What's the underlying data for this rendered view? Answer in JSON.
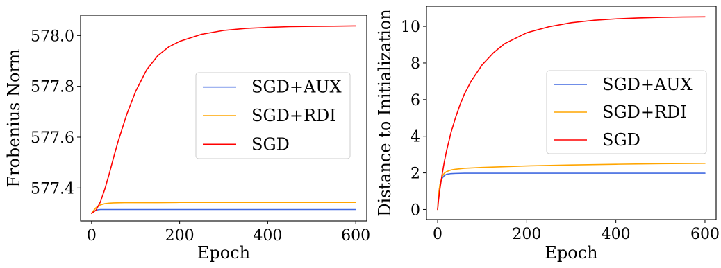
{
  "chart_data": [
    {
      "type": "line",
      "xlabel": "Epoch",
      "ylabel": "Frobenius Norm",
      "xlim": [
        -25,
        625
      ],
      "ylim": [
        577.27,
        578.08
      ],
      "xticks": [
        0,
        200,
        400,
        600
      ],
      "xtick_labels": [
        "0",
        "200",
        "400",
        "600"
      ],
      "yticks": [
        577.4,
        577.6,
        577.8,
        578.0
      ],
      "ytick_labels": [
        "577.4",
        "577.6",
        "577.8",
        "578.0"
      ],
      "legend_position": "center-right",
      "grid": false,
      "series": [
        {
          "name": "SGD+AUX",
          "color": "#4169e1",
          "x": [
            0,
            5,
            10,
            15,
            20,
            30,
            50,
            100,
            200,
            300,
            400,
            500,
            600
          ],
          "y": [
            577.3,
            577.307,
            577.312,
            577.314,
            577.315,
            577.315,
            577.315,
            577.315,
            577.315,
            577.315,
            577.315,
            577.315,
            577.315
          ]
        },
        {
          "name": "SGD+RDI",
          "color": "#ffa500",
          "x": [
            0,
            5,
            10,
            15,
            20,
            30,
            40,
            50,
            75,
            100,
            150,
            200,
            300,
            400,
            500,
            600
          ],
          "y": [
            577.3,
            577.312,
            577.322,
            577.329,
            577.333,
            577.338,
            577.34,
            577.341,
            577.342,
            577.342,
            577.342,
            577.343,
            577.343,
            577.343,
            577.343,
            577.343
          ]
        },
        {
          "name": "SGD",
          "color": "#ff0000",
          "x": [
            0,
            10,
            20,
            30,
            40,
            50,
            60,
            80,
            100,
            125,
            150,
            175,
            200,
            250,
            300,
            350,
            400,
            450,
            500,
            550,
            600
          ],
          "y": [
            577.3,
            577.312,
            577.345,
            577.395,
            577.455,
            577.52,
            577.582,
            577.69,
            577.78,
            577.865,
            577.92,
            577.955,
            577.977,
            578.005,
            578.02,
            578.028,
            578.032,
            578.035,
            578.036,
            578.037,
            578.038
          ]
        }
      ]
    },
    {
      "type": "line",
      "xlabel": "Epoch",
      "ylabel": "Distance to Initialization",
      "xlim": [
        -25,
        625
      ],
      "ylim": [
        -0.55,
        11.1
      ],
      "xticks": [
        0,
        200,
        400,
        600
      ],
      "xtick_labels": [
        "0",
        "200",
        "400",
        "600"
      ],
      "yticks": [
        0,
        2,
        4,
        6,
        8,
        10
      ],
      "ytick_labels": [
        "0",
        "2",
        "4",
        "6",
        "8",
        "10"
      ],
      "legend_position": "center-right",
      "grid": false,
      "series": [
        {
          "name": "SGD+AUX",
          "color": "#4169e1",
          "x": [
            0,
            2,
            5,
            10,
            15,
            20,
            30,
            40,
            60,
            100,
            200,
            300,
            400,
            500,
            600
          ],
          "y": [
            0,
            0.8,
            1.3,
            1.7,
            1.85,
            1.92,
            1.96,
            1.97,
            1.98,
            1.98,
            1.98,
            1.98,
            1.98,
            1.98,
            1.98
          ]
        },
        {
          "name": "SGD+RDI",
          "color": "#ffa500",
          "x": [
            0,
            2,
            5,
            10,
            15,
            20,
            30,
            40,
            60,
            100,
            200,
            300,
            400,
            500,
            600
          ],
          "y": [
            0,
            0.8,
            1.35,
            1.8,
            1.98,
            2.07,
            2.16,
            2.2,
            2.25,
            2.3,
            2.38,
            2.43,
            2.47,
            2.5,
            2.52
          ]
        },
        {
          "name": "SGD",
          "color": "#ff0000",
          "x": [
            0,
            2,
            5,
            10,
            15,
            20,
            30,
            40,
            50,
            60,
            75,
            100,
            125,
            150,
            200,
            250,
            300,
            350,
            400,
            450,
            500,
            550,
            600
          ],
          "y": [
            0,
            0.5,
            1.1,
            1.9,
            2.6,
            3.2,
            4.2,
            5.0,
            5.7,
            6.3,
            7.0,
            7.9,
            8.55,
            9.05,
            9.65,
            9.98,
            10.2,
            10.33,
            10.41,
            10.46,
            10.49,
            10.51,
            10.52
          ]
        }
      ]
    }
  ]
}
